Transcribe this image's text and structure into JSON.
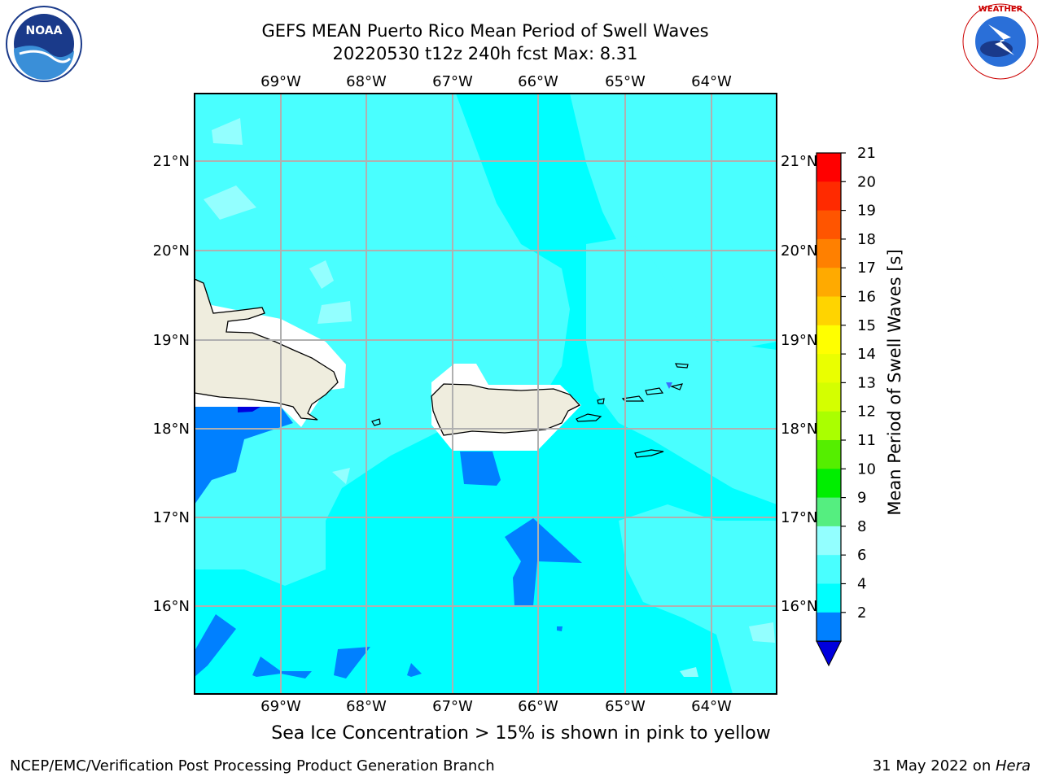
{
  "header": {
    "title_line1": "GEFS MEAN Puerto Rico Mean Period of Swell Waves",
    "title_line2": "20220530 t12z 240h fcst   Max: 8.31"
  },
  "logos": {
    "left": {
      "icon": "noaa-logo",
      "text": "NOAA",
      "ring_text": "NATIONAL OCEANIC AND ATMOSPHERIC ADMINISTRATION · U.S. DEPARTMENT OF COMMERCE"
    },
    "right": {
      "icon": "national-weather-service-logo",
      "ring_text": "NATIONAL WEATHER SERVICE"
    }
  },
  "map": {
    "lon_labels": [
      "69°W",
      "68°W",
      "67°W",
      "66°W",
      "65°W",
      "64°W"
    ],
    "lat_labels": [
      "21°N",
      "20°N",
      "19°N",
      "18°N",
      "17°N",
      "16°N"
    ],
    "land_color": "#efedde",
    "field_colors": {
      "2-4": "#0080ff",
      "4-6": "#00ffff",
      "6-8": "#49ffff",
      "8-9": "#93ffff",
      "under-2": "#0000dd"
    }
  },
  "colorbar": {
    "label": "Mean Period of Swell Waves [s]",
    "ticks": [
      "21",
      "20",
      "19",
      "18",
      "17",
      "16",
      "15",
      "14",
      "13",
      "12",
      "11",
      "10",
      "9",
      "8",
      "6",
      "4",
      "2"
    ],
    "colors_top_to_bottom": [
      "#ff0000",
      "#ff2a00",
      "#ff5500",
      "#ff8000",
      "#ffaa00",
      "#ffd400",
      "#ffff00",
      "#eaff00",
      "#d4ff00",
      "#aaff00",
      "#55ee00",
      "#00ee00",
      "#55ee80",
      "#93ffff",
      "#49ffff",
      "#00ffff",
      "#0080ff"
    ],
    "extend_color": "#0000dd"
  },
  "note": "Sea Ice Concentration > 15% is shown in pink to yellow",
  "footer": {
    "left": "NCEP/EMC/Verification Post Processing Product Generation Branch",
    "right_date": "31 May 2022 on ",
    "right_machine": "Hera"
  }
}
